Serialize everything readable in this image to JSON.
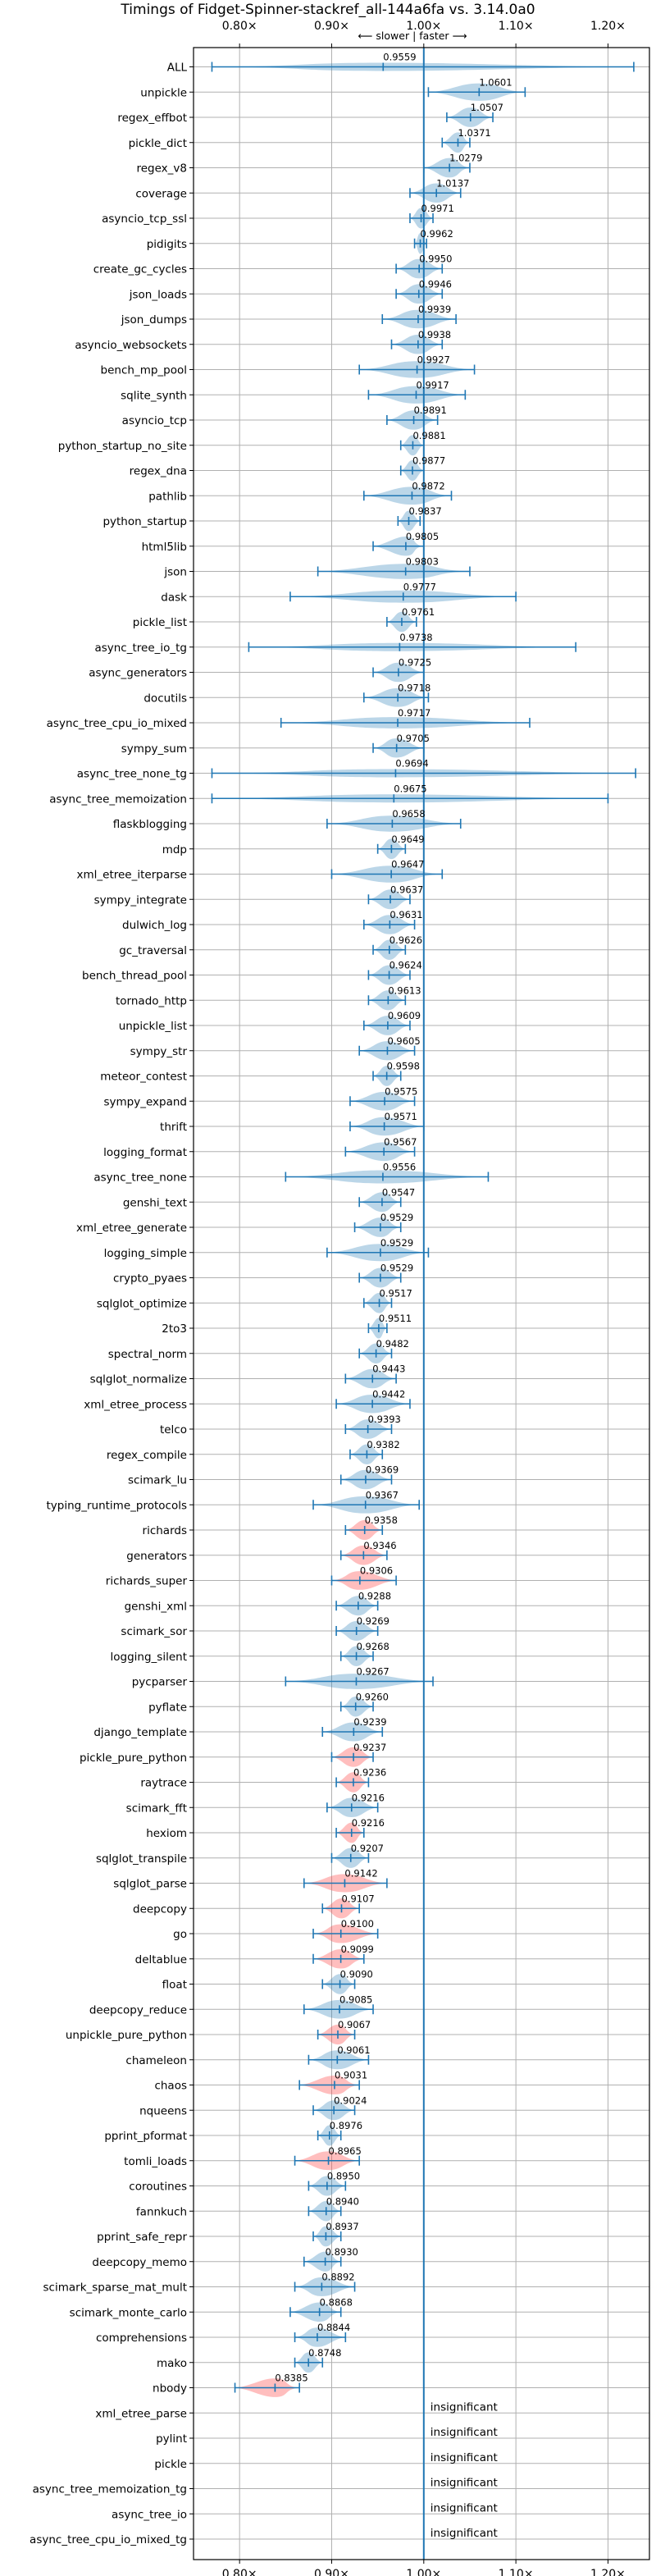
{
  "chart_data": {
    "type": "violin",
    "title": "Timings of Fidget-Spinner-stackref_all-144a6fa vs. 3.14.0a0",
    "direction_note": "⟵ slower | faster ⟶",
    "x_ticks": [
      "0.80×",
      "0.90×",
      "1.00×",
      "1.10×",
      "1.20×"
    ],
    "x_tick_values": [
      0.8,
      0.9,
      1.0,
      1.1,
      1.2
    ],
    "xlim": [
      0.75,
      1.245
    ],
    "baseline": 1.0,
    "insignificant_text": "insignificant",
    "colors": {
      "faster_or_neutral": "#1f77b4",
      "slower_significant": "#ff4444",
      "baseline": "#1f77b4"
    },
    "benchmarks": [
      {
        "name": "ALL",
        "value": 0.9559,
        "min": 0.77,
        "max": 1.228,
        "label": "0.9559",
        "color": "blue"
      },
      {
        "name": "unpickle",
        "value": 1.0601,
        "min": 1.005,
        "max": 1.11,
        "label": "1.0601",
        "color": "blue"
      },
      {
        "name": "regex_effbot",
        "value": 1.0507,
        "min": 1.025,
        "max": 1.075,
        "label": "1.0507",
        "color": "blue"
      },
      {
        "name": "pickle_dict",
        "value": 1.0371,
        "min": 1.02,
        "max": 1.05,
        "label": "1.0371",
        "color": "blue"
      },
      {
        "name": "regex_v8",
        "value": 1.0279,
        "min": 1.0,
        "max": 1.05,
        "label": "1.0279",
        "color": "blue"
      },
      {
        "name": "coverage",
        "value": 1.0137,
        "min": 0.985,
        "max": 1.04,
        "label": "1.0137",
        "color": "blue"
      },
      {
        "name": "asyncio_tcp_ssl",
        "value": 0.9971,
        "min": 0.985,
        "max": 1.01,
        "label": "0.9971",
        "color": "blue"
      },
      {
        "name": "pidigits",
        "value": 0.9962,
        "min": 0.99,
        "max": 1.003,
        "label": "0.9962",
        "color": "blue"
      },
      {
        "name": "create_gc_cycles",
        "value": 0.995,
        "min": 0.97,
        "max": 1.02,
        "label": "0.9950",
        "color": "blue"
      },
      {
        "name": "json_loads",
        "value": 0.9946,
        "min": 0.97,
        "max": 1.02,
        "label": "0.9946",
        "color": "blue"
      },
      {
        "name": "json_dumps",
        "value": 0.9939,
        "min": 0.955,
        "max": 1.035,
        "label": "0.9939",
        "color": "blue"
      },
      {
        "name": "asyncio_websockets",
        "value": 0.9938,
        "min": 0.965,
        "max": 1.02,
        "label": "0.9938",
        "color": "blue"
      },
      {
        "name": "bench_mp_pool",
        "value": 0.9927,
        "min": 0.93,
        "max": 1.055,
        "label": "0.9927",
        "color": "blue"
      },
      {
        "name": "sqlite_synth",
        "value": 0.9917,
        "min": 0.94,
        "max": 1.045,
        "label": "0.9917",
        "color": "blue"
      },
      {
        "name": "asyncio_tcp",
        "value": 0.9891,
        "min": 0.96,
        "max": 1.015,
        "label": "0.9891",
        "color": "blue"
      },
      {
        "name": "python_startup_no_site",
        "value": 0.9881,
        "min": 0.975,
        "max": 1.0,
        "label": "0.9881",
        "color": "blue"
      },
      {
        "name": "regex_dna",
        "value": 0.9877,
        "min": 0.975,
        "max": 1.0,
        "label": "0.9877",
        "color": "blue"
      },
      {
        "name": "pathlib",
        "value": 0.9872,
        "min": 0.935,
        "max": 1.03,
        "label": "0.9872",
        "color": "blue"
      },
      {
        "name": "python_startup",
        "value": 0.9837,
        "min": 0.972,
        "max": 0.996,
        "label": "0.9837",
        "color": "blue"
      },
      {
        "name": "html5lib",
        "value": 0.9805,
        "min": 0.945,
        "max": 1.0,
        "label": "0.9805",
        "color": "blue"
      },
      {
        "name": "json",
        "value": 0.9803,
        "min": 0.885,
        "max": 1.05,
        "label": "0.9803",
        "color": "blue"
      },
      {
        "name": "dask",
        "value": 0.9777,
        "min": 0.855,
        "max": 1.1,
        "label": "0.9777",
        "color": "blue"
      },
      {
        "name": "pickle_list",
        "value": 0.9761,
        "min": 0.96,
        "max": 0.992,
        "label": "0.9761",
        "color": "blue"
      },
      {
        "name": "async_tree_io_tg",
        "value": 0.9738,
        "min": 0.81,
        "max": 1.165,
        "label": "0.9738",
        "color": "blue"
      },
      {
        "name": "async_generators",
        "value": 0.9725,
        "min": 0.945,
        "max": 1.0,
        "label": "0.9725",
        "color": "blue"
      },
      {
        "name": "docutils",
        "value": 0.9718,
        "min": 0.935,
        "max": 1.005,
        "label": "0.9718",
        "color": "blue"
      },
      {
        "name": "async_tree_cpu_io_mixed",
        "value": 0.9717,
        "min": 0.845,
        "max": 1.115,
        "label": "0.9717",
        "color": "blue"
      },
      {
        "name": "sympy_sum",
        "value": 0.9705,
        "min": 0.945,
        "max": 1.0,
        "label": "0.9705",
        "color": "blue"
      },
      {
        "name": "async_tree_none_tg",
        "value": 0.9694,
        "min": 0.77,
        "max": 1.23,
        "label": "0.9694",
        "color": "blue"
      },
      {
        "name": "async_tree_memoization",
        "value": 0.9675,
        "min": 0.77,
        "max": 1.2,
        "label": "0.9675",
        "color": "blue"
      },
      {
        "name": "flaskblogging",
        "value": 0.9658,
        "min": 0.895,
        "max": 1.04,
        "label": "0.9658",
        "color": "blue"
      },
      {
        "name": "mdp",
        "value": 0.9649,
        "min": 0.95,
        "max": 0.98,
        "label": "0.9649",
        "color": "blue"
      },
      {
        "name": "xml_etree_iterparse",
        "value": 0.9647,
        "min": 0.9,
        "max": 1.02,
        "label": "0.9647",
        "color": "blue"
      },
      {
        "name": "sympy_integrate",
        "value": 0.9637,
        "min": 0.94,
        "max": 0.985,
        "label": "0.9637",
        "color": "blue"
      },
      {
        "name": "dulwich_log",
        "value": 0.9631,
        "min": 0.935,
        "max": 0.99,
        "label": "0.9631",
        "color": "blue"
      },
      {
        "name": "gc_traversal",
        "value": 0.9626,
        "min": 0.945,
        "max": 0.98,
        "label": "0.9626",
        "color": "blue"
      },
      {
        "name": "bench_thread_pool",
        "value": 0.9624,
        "min": 0.94,
        "max": 0.985,
        "label": "0.9624",
        "color": "blue"
      },
      {
        "name": "tornado_http",
        "value": 0.9613,
        "min": 0.94,
        "max": 0.98,
        "label": "0.9613",
        "color": "blue"
      },
      {
        "name": "unpickle_list",
        "value": 0.9609,
        "min": 0.935,
        "max": 0.985,
        "label": "0.9609",
        "color": "blue"
      },
      {
        "name": "sympy_str",
        "value": 0.9605,
        "min": 0.93,
        "max": 0.99,
        "label": "0.9605",
        "color": "blue"
      },
      {
        "name": "meteor_contest",
        "value": 0.9598,
        "min": 0.945,
        "max": 0.975,
        "label": "0.9598",
        "color": "blue"
      },
      {
        "name": "sympy_expand",
        "value": 0.9575,
        "min": 0.92,
        "max": 0.99,
        "label": "0.9575",
        "color": "blue"
      },
      {
        "name": "thrift",
        "value": 0.9571,
        "min": 0.92,
        "max": 1.0,
        "label": "0.9571",
        "color": "blue"
      },
      {
        "name": "logging_format",
        "value": 0.9567,
        "min": 0.915,
        "max": 0.99,
        "label": "0.9567",
        "color": "blue"
      },
      {
        "name": "async_tree_none",
        "value": 0.9556,
        "min": 0.85,
        "max": 1.07,
        "label": "0.9556",
        "color": "blue"
      },
      {
        "name": "genshi_text",
        "value": 0.9547,
        "min": 0.93,
        "max": 0.975,
        "label": "0.9547",
        "color": "blue"
      },
      {
        "name": "xml_etree_generate",
        "value": 0.9529,
        "min": 0.925,
        "max": 0.975,
        "label": "0.9529",
        "color": "blue"
      },
      {
        "name": "logging_simple",
        "value": 0.9529,
        "min": 0.895,
        "max": 1.005,
        "label": "0.9529",
        "color": "blue"
      },
      {
        "name": "crypto_pyaes",
        "value": 0.9529,
        "min": 0.93,
        "max": 0.975,
        "label": "0.9529",
        "color": "blue"
      },
      {
        "name": "sqlglot_optimize",
        "value": 0.9517,
        "min": 0.935,
        "max": 0.965,
        "label": "0.9517",
        "color": "blue"
      },
      {
        "name": "2to3",
        "value": 0.9511,
        "min": 0.94,
        "max": 0.96,
        "label": "0.9511",
        "color": "blue"
      },
      {
        "name": "spectral_norm",
        "value": 0.9482,
        "min": 0.93,
        "max": 0.965,
        "label": "0.9482",
        "color": "blue"
      },
      {
        "name": "sqlglot_normalize",
        "value": 0.9443,
        "min": 0.915,
        "max": 0.97,
        "label": "0.9443",
        "color": "blue"
      },
      {
        "name": "xml_etree_process",
        "value": 0.9442,
        "min": 0.905,
        "max": 0.985,
        "label": "0.9442",
        "color": "blue"
      },
      {
        "name": "telco",
        "value": 0.9393,
        "min": 0.915,
        "max": 0.965,
        "label": "0.9393",
        "color": "blue"
      },
      {
        "name": "regex_compile",
        "value": 0.9382,
        "min": 0.92,
        "max": 0.955,
        "label": "0.9382",
        "color": "blue"
      },
      {
        "name": "scimark_lu",
        "value": 0.9369,
        "min": 0.91,
        "max": 0.965,
        "label": "0.9369",
        "color": "blue"
      },
      {
        "name": "typing_runtime_protocols",
        "value": 0.9367,
        "min": 0.88,
        "max": 0.995,
        "label": "0.9367",
        "color": "blue"
      },
      {
        "name": "richards",
        "value": 0.9358,
        "min": 0.915,
        "max": 0.955,
        "label": "0.9358",
        "color": "red"
      },
      {
        "name": "generators",
        "value": 0.9346,
        "min": 0.91,
        "max": 0.96,
        "label": "0.9346",
        "color": "red"
      },
      {
        "name": "richards_super",
        "value": 0.9306,
        "min": 0.9,
        "max": 0.97,
        "label": "0.9306",
        "color": "red"
      },
      {
        "name": "genshi_xml",
        "value": 0.9288,
        "min": 0.905,
        "max": 0.95,
        "label": "0.9288",
        "color": "blue"
      },
      {
        "name": "scimark_sor",
        "value": 0.9269,
        "min": 0.905,
        "max": 0.95,
        "label": "0.9269",
        "color": "blue"
      },
      {
        "name": "logging_silent",
        "value": 0.9268,
        "min": 0.91,
        "max": 0.945,
        "label": "0.9268",
        "color": "blue"
      },
      {
        "name": "pycparser",
        "value": 0.9267,
        "min": 0.85,
        "max": 1.01,
        "label": "0.9267",
        "color": "blue"
      },
      {
        "name": "pyflate",
        "value": 0.926,
        "min": 0.91,
        "max": 0.945,
        "label": "0.9260",
        "color": "blue"
      },
      {
        "name": "django_template",
        "value": 0.9239,
        "min": 0.89,
        "max": 0.955,
        "label": "0.9239",
        "color": "blue"
      },
      {
        "name": "pickle_pure_python",
        "value": 0.9237,
        "min": 0.9,
        "max": 0.945,
        "label": "0.9237",
        "color": "red"
      },
      {
        "name": "raytrace",
        "value": 0.9236,
        "min": 0.905,
        "max": 0.94,
        "label": "0.9236",
        "color": "red"
      },
      {
        "name": "scimark_fft",
        "value": 0.9216,
        "min": 0.895,
        "max": 0.95,
        "label": "0.9216",
        "color": "blue"
      },
      {
        "name": "hexiom",
        "value": 0.9216,
        "min": 0.905,
        "max": 0.935,
        "label": "0.9216",
        "color": "red"
      },
      {
        "name": "sqlglot_transpile",
        "value": 0.9207,
        "min": 0.9,
        "max": 0.94,
        "label": "0.9207",
        "color": "blue"
      },
      {
        "name": "sqlglot_parse",
        "value": 0.9142,
        "min": 0.87,
        "max": 0.96,
        "label": "0.9142",
        "color": "red"
      },
      {
        "name": "deepcopy",
        "value": 0.9107,
        "min": 0.89,
        "max": 0.93,
        "label": "0.9107",
        "color": "red"
      },
      {
        "name": "go",
        "value": 0.91,
        "min": 0.88,
        "max": 0.95,
        "label": "0.9100",
        "color": "red"
      },
      {
        "name": "deltablue",
        "value": 0.9099,
        "min": 0.88,
        "max": 0.935,
        "label": "0.9099",
        "color": "red"
      },
      {
        "name": "float",
        "value": 0.909,
        "min": 0.89,
        "max": 0.925,
        "label": "0.9090",
        "color": "blue"
      },
      {
        "name": "deepcopy_reduce",
        "value": 0.9085,
        "min": 0.87,
        "max": 0.945,
        "label": "0.9085",
        "color": "blue"
      },
      {
        "name": "unpickle_pure_python",
        "value": 0.9067,
        "min": 0.885,
        "max": 0.925,
        "label": "0.9067",
        "color": "red"
      },
      {
        "name": "chameleon",
        "value": 0.9061,
        "min": 0.875,
        "max": 0.94,
        "label": "0.9061",
        "color": "blue"
      },
      {
        "name": "chaos",
        "value": 0.9031,
        "min": 0.865,
        "max": 0.93,
        "label": "0.9031",
        "color": "red"
      },
      {
        "name": "nqueens",
        "value": 0.9024,
        "min": 0.88,
        "max": 0.925,
        "label": "0.9024",
        "color": "blue"
      },
      {
        "name": "pprint_pformat",
        "value": 0.8976,
        "min": 0.885,
        "max": 0.91,
        "label": "0.8976",
        "color": "blue"
      },
      {
        "name": "tomli_loads",
        "value": 0.8965,
        "min": 0.86,
        "max": 0.93,
        "label": "0.8965",
        "color": "red"
      },
      {
        "name": "coroutines",
        "value": 0.895,
        "min": 0.875,
        "max": 0.915,
        "label": "0.8950",
        "color": "blue"
      },
      {
        "name": "fannkuch",
        "value": 0.894,
        "min": 0.875,
        "max": 0.91,
        "label": "0.8940",
        "color": "blue"
      },
      {
        "name": "pprint_safe_repr",
        "value": 0.8937,
        "min": 0.88,
        "max": 0.91,
        "label": "0.8937",
        "color": "blue"
      },
      {
        "name": "deepcopy_memo",
        "value": 0.893,
        "min": 0.87,
        "max": 0.91,
        "label": "0.8930",
        "color": "blue"
      },
      {
        "name": "scimark_sparse_mat_mult",
        "value": 0.8892,
        "min": 0.86,
        "max": 0.925,
        "label": "0.8892",
        "color": "blue"
      },
      {
        "name": "scimark_monte_carlo",
        "value": 0.8868,
        "min": 0.855,
        "max": 0.91,
        "label": "0.8868",
        "color": "blue"
      },
      {
        "name": "comprehensions",
        "value": 0.8844,
        "min": 0.86,
        "max": 0.915,
        "label": "0.8844",
        "color": "blue"
      },
      {
        "name": "mako",
        "value": 0.8748,
        "min": 0.86,
        "max": 0.89,
        "label": "0.8748",
        "color": "blue"
      },
      {
        "name": "nbody",
        "value": 0.8385,
        "min": 0.795,
        "max": 0.865,
        "label": "0.8385",
        "color": "red"
      },
      {
        "name": "xml_etree_parse",
        "insignificant": true
      },
      {
        "name": "pylint",
        "insignificant": true
      },
      {
        "name": "pickle",
        "insignificant": true
      },
      {
        "name": "async_tree_memoization_tg",
        "insignificant": true
      },
      {
        "name": "async_tree_io",
        "insignificant": true
      },
      {
        "name": "async_tree_cpu_io_mixed_tg",
        "insignificant": true
      }
    ]
  }
}
